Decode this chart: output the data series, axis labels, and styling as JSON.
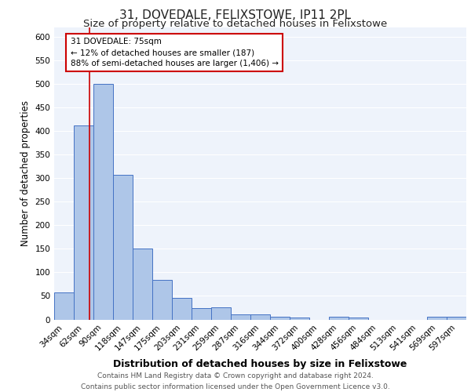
{
  "title": "31, DOVEDALE, FELIXSTOWE, IP11 2PL",
  "subtitle": "Size of property relative to detached houses in Felixstowe",
  "xlabel": "Distribution of detached houses by size in Felixstowe",
  "ylabel": "Number of detached properties",
  "categories": [
    "34sqm",
    "62sqm",
    "90sqm",
    "118sqm",
    "147sqm",
    "175sqm",
    "203sqm",
    "231sqm",
    "259sqm",
    "287sqm",
    "316sqm",
    "344sqm",
    "372sqm",
    "400sqm",
    "428sqm",
    "456sqm",
    "484sqm",
    "513sqm",
    "541sqm",
    "569sqm",
    "597sqm"
  ],
  "values": [
    57,
    412,
    500,
    307,
    150,
    84,
    45,
    24,
    25,
    11,
    10,
    6,
    4,
    0,
    5,
    4,
    0,
    0,
    0,
    5,
    5
  ],
  "bar_color": "#aec6e8",
  "bar_edge_color": "#4472c4",
  "bg_color": "#eef3fb",
  "grid_color": "#ffffff",
  "red_line_x": 1.3,
  "annotation_text": "31 DOVEDALE: 75sqm\n← 12% of detached houses are smaller (187)\n88% of semi-detached houses are larger (1,406) →",
  "annotation_box_color": "#ffffff",
  "annotation_box_edge": "#cc0000",
  "footer": "Contains HM Land Registry data © Crown copyright and database right 2024.\nContains public sector information licensed under the Open Government Licence v3.0.",
  "ylim": [
    0,
    620
  ],
  "yticks": [
    0,
    50,
    100,
    150,
    200,
    250,
    300,
    350,
    400,
    450,
    500,
    550,
    600
  ],
  "title_fontsize": 11,
  "subtitle_fontsize": 9.5,
  "xlabel_fontsize": 9,
  "ylabel_fontsize": 8.5,
  "tick_fontsize": 7.5,
  "footer_fontsize": 6.5,
  "annotation_fontsize": 7.5
}
